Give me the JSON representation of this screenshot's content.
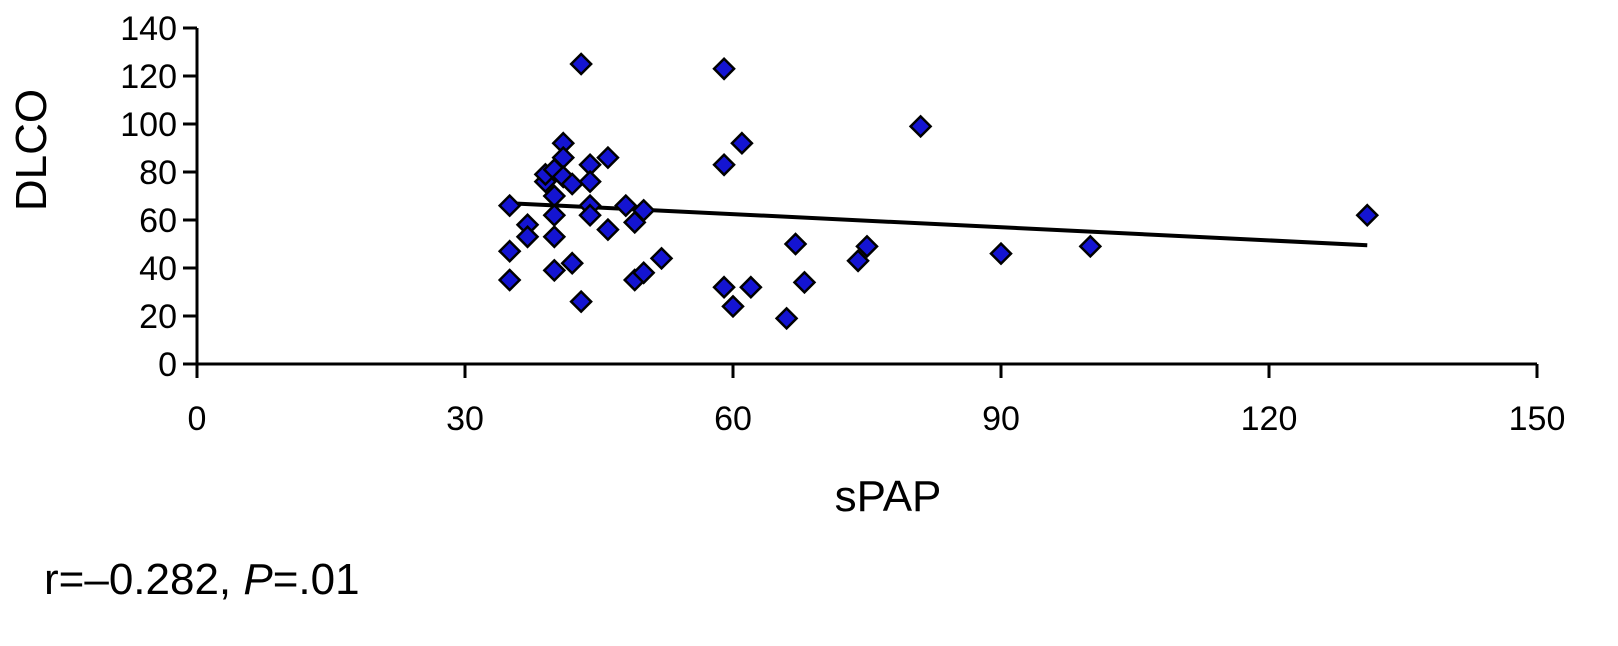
{
  "chart_data": {
    "type": "scatter",
    "title": "",
    "xlabel": "sPAP",
    "ylabel": "DLCO",
    "xlim": [
      0,
      150
    ],
    "ylim": [
      0,
      140
    ],
    "xticks": [
      0,
      30,
      60,
      90,
      120,
      150
    ],
    "yticks": [
      0,
      20,
      40,
      60,
      80,
      100,
      120,
      140
    ],
    "grid": false,
    "legend": "none",
    "marker": "diamond",
    "marker_color": "#1414d2",
    "line_color": "#000000",
    "points": [
      {
        "x": 35,
        "y": 66
      },
      {
        "x": 35,
        "y": 47
      },
      {
        "x": 35,
        "y": 35
      },
      {
        "x": 37,
        "y": 58
      },
      {
        "x": 37,
        "y": 53
      },
      {
        "x": 39,
        "y": 76
      },
      {
        "x": 39,
        "y": 79
      },
      {
        "x": 40,
        "y": 81
      },
      {
        "x": 40,
        "y": 70
      },
      {
        "x": 40,
        "y": 62
      },
      {
        "x": 40,
        "y": 53
      },
      {
        "x": 40,
        "y": 39
      },
      {
        "x": 41,
        "y": 92
      },
      {
        "x": 41,
        "y": 86
      },
      {
        "x": 41,
        "y": 78
      },
      {
        "x": 42,
        "y": 75
      },
      {
        "x": 42,
        "y": 42
      },
      {
        "x": 43,
        "y": 125
      },
      {
        "x": 43,
        "y": 26
      },
      {
        "x": 44,
        "y": 83
      },
      {
        "x": 44,
        "y": 76
      },
      {
        "x": 44,
        "y": 66
      },
      {
        "x": 44,
        "y": 62
      },
      {
        "x": 46,
        "y": 86
      },
      {
        "x": 46,
        "y": 56
      },
      {
        "x": 48,
        "y": 66
      },
      {
        "x": 49,
        "y": 59
      },
      {
        "x": 49,
        "y": 35
      },
      {
        "x": 50,
        "y": 64
      },
      {
        "x": 50,
        "y": 38
      },
      {
        "x": 52,
        "y": 44
      },
      {
        "x": 59,
        "y": 123
      },
      {
        "x": 59,
        "y": 83
      },
      {
        "x": 59,
        "y": 32
      },
      {
        "x": 60,
        "y": 24
      },
      {
        "x": 61,
        "y": 92
      },
      {
        "x": 62,
        "y": 32
      },
      {
        "x": 66,
        "y": 19
      },
      {
        "x": 67,
        "y": 50
      },
      {
        "x": 68,
        "y": 34
      },
      {
        "x": 74,
        "y": 43
      },
      {
        "x": 75,
        "y": 49
      },
      {
        "x": 81,
        "y": 99
      },
      {
        "x": 90,
        "y": 46
      },
      {
        "x": 100,
        "y": 49
      },
      {
        "x": 131,
        "y": 62
      }
    ],
    "trendline": {
      "x": [
        35,
        131
      ],
      "y": [
        67,
        49.5
      ]
    },
    "annotation": {
      "prefix": "r=–0.282, ",
      "p_letter": "P",
      "suffix": "=.01"
    }
  }
}
